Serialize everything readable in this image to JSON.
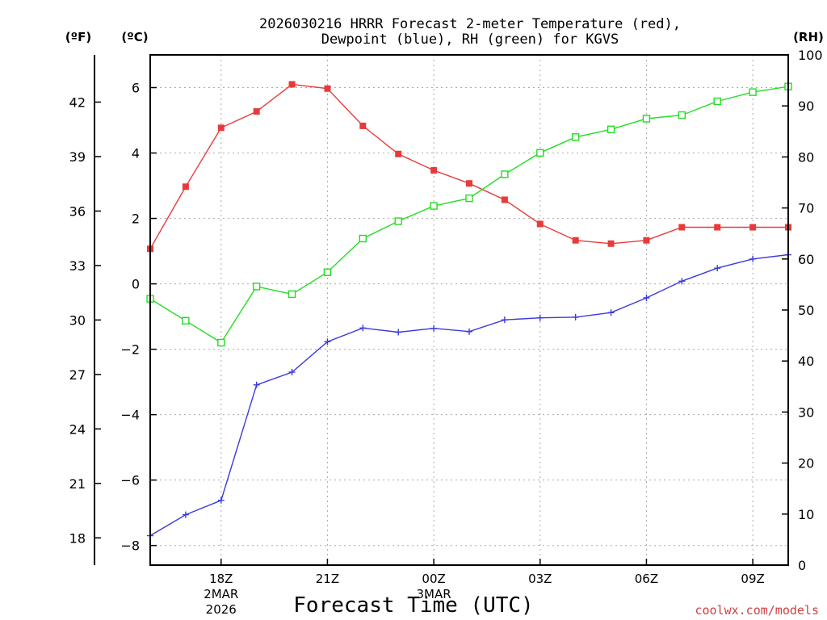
{
  "chart_data": {
    "type": "line",
    "title_line1": "2026030216 HRRR Forecast 2-meter Temperature (red),",
    "title_line2": "Dewpoint (blue), RH (green) for KGVS",
    "units": {
      "fahrenheit": "(ºF)",
      "celsius": "(ºC)",
      "rh": "(RH)"
    },
    "xlabel": "Forecast Time (UTC)",
    "credit": "coolwx.com/models",
    "x_hours": [
      16,
      17,
      18,
      19,
      20,
      21,
      22,
      23,
      24,
      25,
      26,
      27,
      28,
      29,
      30,
      31,
      32,
      33,
      34
    ],
    "xlim": [
      16,
      34
    ],
    "x_ticks": [
      {
        "hour": 18,
        "label": "18Z",
        "sub1": "2MAR",
        "sub2": "2026"
      },
      {
        "hour": 21,
        "label": "21Z",
        "sub1": "",
        "sub2": ""
      },
      {
        "hour": 24,
        "label": "00Z",
        "sub1": "3MAR",
        "sub2": ""
      },
      {
        "hour": 27,
        "label": "03Z",
        "sub1": "",
        "sub2": ""
      },
      {
        "hour": 30,
        "label": "06Z",
        "sub1": "",
        "sub2": ""
      },
      {
        "hour": 33,
        "label": "09Z",
        "sub1": "",
        "sub2": ""
      }
    ],
    "celsius_axis": {
      "range": [
        -8.6,
        7.0
      ],
      "ticks": [
        6,
        4,
        2,
        0,
        -2,
        -4,
        -6,
        -8
      ]
    },
    "fahrenheit_axis": {
      "range": [
        16.5,
        44.6
      ],
      "ticks": [
        42,
        39,
        36,
        33,
        30,
        27,
        24,
        21,
        18
      ]
    },
    "rh_axis": {
      "range": [
        0,
        100
      ],
      "ticks": [
        100,
        90,
        80,
        70,
        60,
        50,
        40,
        30,
        20,
        10,
        0
      ]
    },
    "series": [
      {
        "name": "Temperature",
        "axis": "celsius",
        "color": "#e83a3a",
        "marker": "filled-square",
        "values": [
          1.07,
          2.97,
          4.77,
          5.27,
          6.1,
          5.97,
          4.83,
          3.97,
          3.47,
          3.07,
          2.57,
          1.83,
          1.33,
          1.23,
          1.33,
          1.73,
          1.73,
          1.73,
          1.73
        ]
      },
      {
        "name": "Dewpoint",
        "axis": "celsius",
        "color": "#3a3ae0",
        "marker": "plus",
        "values": [
          -7.7,
          -7.06,
          -6.62,
          -3.09,
          -2.7,
          -1.77,
          -1.35,
          -1.48,
          -1.36,
          -1.46,
          -1.1,
          -1.04,
          -1.02,
          -0.88,
          -0.43,
          0.08,
          0.48,
          0.76,
          0.89
        ]
      },
      {
        "name": "Relative Humidity",
        "axis": "rh",
        "color": "#22dd22",
        "marker": "open-square",
        "values": [
          52.2,
          47.9,
          43.6,
          54.6,
          53.1,
          57.4,
          64.0,
          67.4,
          70.4,
          71.9,
          76.6,
          80.8,
          83.9,
          85.4,
          87.5,
          88.2,
          90.9,
          92.7,
          93.8
        ]
      }
    ]
  }
}
